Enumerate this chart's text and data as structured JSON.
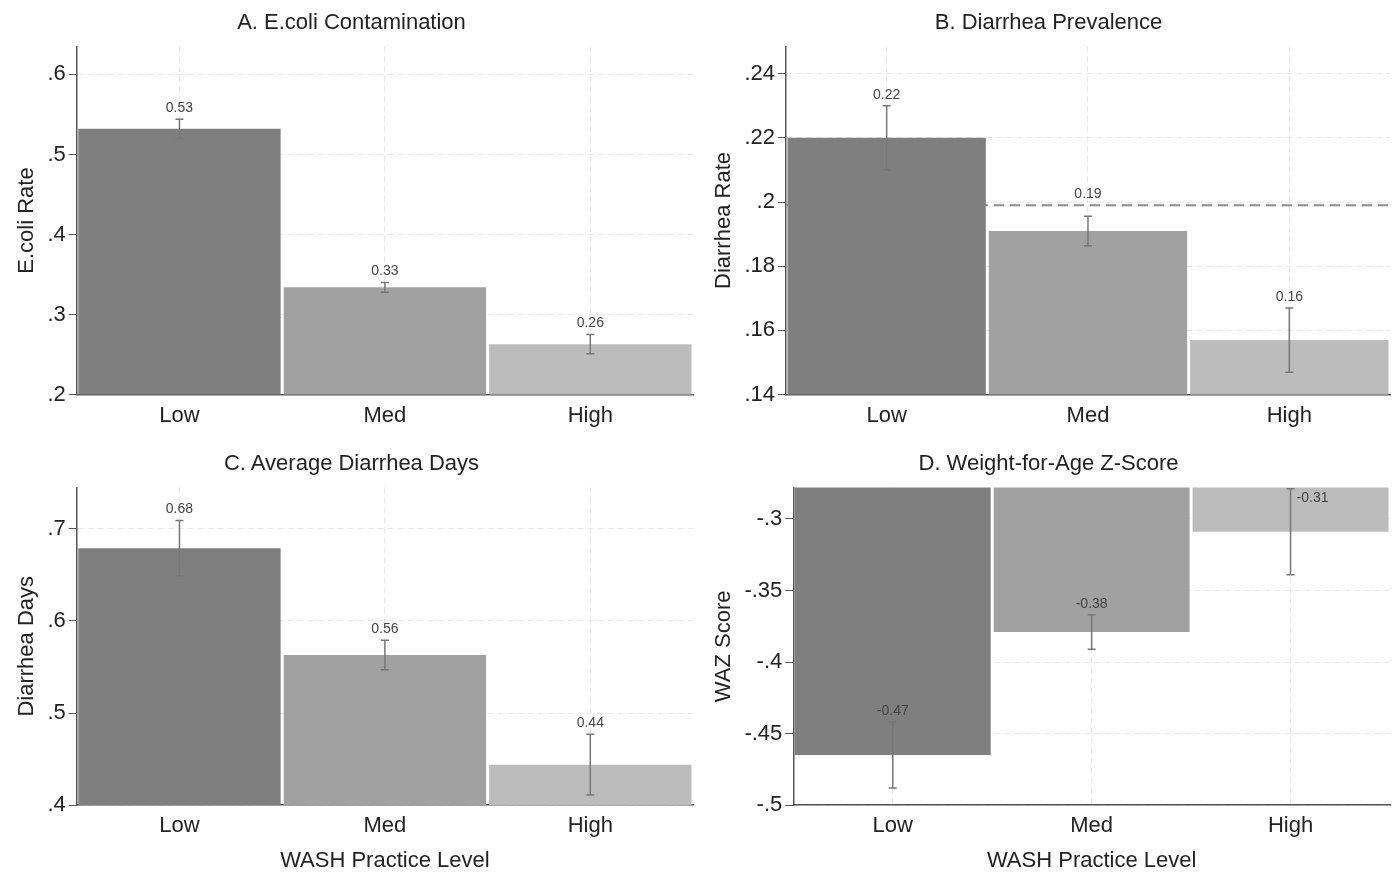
{
  "chart_data": [
    {
      "type": "bar",
      "title": "A. E.coli Contamination",
      "ylabel": "E.coli Rate",
      "categories": [
        "Low",
        "Med",
        "High"
      ],
      "values": [
        0.532,
        0.334,
        0.263
      ],
      "colors": [
        "#7f7f7f",
        "#a1a1a1",
        "#bcbcbc"
      ],
      "errors": [
        0.012,
        0.006,
        0.012
      ],
      "value_labels": [
        "0.53",
        "0.33",
        "0.26"
      ],
      "ylim": [
        0.2,
        0.635
      ],
      "yticks": [
        {
          "value": 0.2,
          "label": ".2"
        },
        {
          "value": 0.3,
          "label": ".3"
        },
        {
          "value": 0.4,
          "label": ".4"
        },
        {
          "value": 0.5,
          "label": ".5"
        },
        {
          "value": 0.6,
          "label": ".6"
        }
      ],
      "grid": true
    },
    {
      "type": "bar",
      "title": "B. Diarrhea Prevalence",
      "ylabel": "Diarrhea Rate",
      "categories": [
        "Low",
        "Med",
        "High"
      ],
      "values": [
        0.22,
        0.191,
        0.157
      ],
      "colors": [
        "#7f7f7f",
        "#a1a1a1",
        "#bcbcbc"
      ],
      "errors": [
        0.01,
        0.0046,
        0.01
      ],
      "value_labels": [
        "0.22",
        "0.19",
        "0.16"
      ],
      "ylim": [
        0.14,
        0.2485
      ],
      "yticks": [
        {
          "value": 0.14,
          "label": ".14"
        },
        {
          "value": 0.16,
          "label": ".16"
        },
        {
          "value": 0.18,
          "label": ".18"
        },
        {
          "value": 0.2,
          "label": ".2"
        },
        {
          "value": 0.22,
          "label": ".22"
        },
        {
          "value": 0.24,
          "label": ".24"
        }
      ],
      "grid": true,
      "ref_lines": [
        {
          "axis": "y",
          "value": 0.199,
          "color": "#8c8c8c",
          "line_style": "dashed"
        }
      ]
    },
    {
      "type": "bar",
      "title": "C. Average Diarrhea Days",
      "ylabel": "Diarrhea Days",
      "xlabel": "WASH Practice Level",
      "categories": [
        "Low",
        "Med",
        "High"
      ],
      "values": [
        0.679,
        0.563,
        0.444
      ],
      "colors": [
        "#7f7f7f",
        "#a1a1a1",
        "#bcbcbc"
      ],
      "errors": [
        0.03,
        0.016,
        0.033
      ],
      "value_labels": [
        "0.68",
        "0.56",
        "0.44"
      ],
      "ylim": [
        0.4,
        0.745
      ],
      "yticks": [
        {
          "value": 0.4,
          "label": ".4"
        },
        {
          "value": 0.5,
          "label": ".5"
        },
        {
          "value": 0.6,
          "label": ".6"
        },
        {
          "value": 0.7,
          "label": ".7"
        }
      ],
      "grid": true
    },
    {
      "type": "bar",
      "title": "D. Weight-for-Age Z-Score",
      "ylabel": "WAZ Score",
      "xlabel": "WASH Practice Level",
      "categories": [
        "Low",
        "Med",
        "High"
      ],
      "values": [
        -0.465,
        -0.379,
        -0.309
      ],
      "colors": [
        "#7f7f7f",
        "#a1a1a1",
        "#bcbcbc"
      ],
      "errors": [
        0.023,
        0.012,
        0.03
      ],
      "value_labels": [
        "-0.47",
        "-0.38",
        "-0.31"
      ],
      "ylim": [
        -0.5,
        -0.278
      ],
      "yticks": [
        {
          "value": -0.5,
          "label": "-.5"
        },
        {
          "value": -0.45,
          "label": "-.45"
        },
        {
          "value": -0.4,
          "label": "-.4"
        },
        {
          "value": -0.35,
          "label": "-.35"
        },
        {
          "value": -0.3,
          "label": "-.3"
        }
      ],
      "grid": true
    }
  ]
}
